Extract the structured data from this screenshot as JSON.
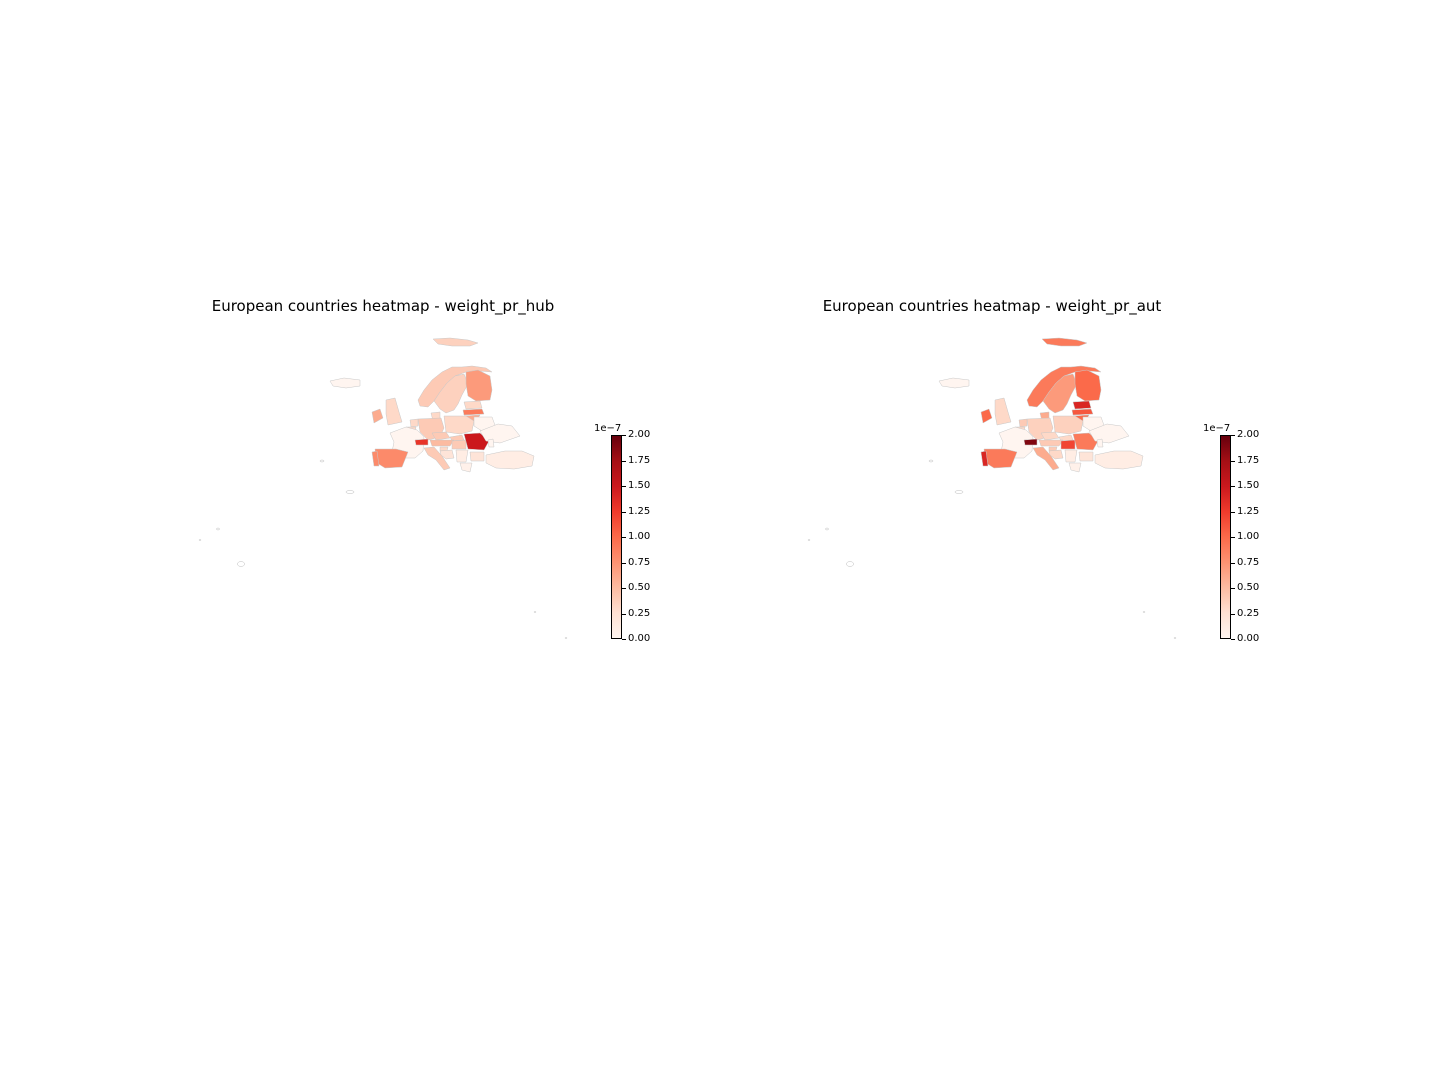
{
  "figure": {
    "maps": [
      {
        "title": "European countries heatmap - weight_pr_hub",
        "colorbar": {
          "exponent": "1e−7",
          "ticks": [
            "0.00",
            "0.25",
            "0.50",
            "0.75",
            "1.00",
            "1.25",
            "1.50",
            "1.75",
            "2.00"
          ]
        }
      },
      {
        "title": "European countries heatmap - weight_pr_aut",
        "colorbar": {
          "exponent": "1e−7",
          "ticks": [
            "0.00",
            "0.25",
            "0.50",
            "0.75",
            "1.00",
            "1.25",
            "1.50",
            "1.75",
            "2.00"
          ]
        }
      }
    ]
  },
  "map_data": {
    "colormap": "Reds",
    "scale_multiplier": 1e-07,
    "vmin": 0.0,
    "vmax": 2.0,
    "maps": [
      {
        "variable": "weight_pr_hub",
        "values": {
          "Iceland": 0.0,
          "Ireland": 0.6,
          "United Kingdom": 0.3,
          "Norway": 0.4,
          "Sweden": 0.35,
          "Finland": 0.7,
          "Svalbard": 0.35,
          "Estonia": 0.3,
          "Latvia": 0.9,
          "Lithuania": 0.6,
          "Denmark": 0.3,
          "Netherlands": 0.3,
          "Belgium": 0.3,
          "France": 0.0,
          "Germany": 0.4,
          "Poland": 0.3,
          "Czechia": 0.4,
          "Slovakia": 0.4,
          "Austria": 0.5,
          "Switzerland": 1.3,
          "Hungary": 0.4,
          "Romania": 1.5,
          "Spain": 0.8,
          "Portugal": 0.8,
          "Italy": 0.4,
          "Croatia": 0.2,
          "Slovenia": 0.3,
          "Serbia": 0.1,
          "Bulgaria": 0.2,
          "Greece": 0.05,
          "Turkey": 0.1,
          "Belarus": 0.0,
          "Ukraine": 0.0,
          "Moldova": 0.0
        }
      },
      {
        "variable": "weight_pr_aut",
        "values": {
          "Iceland": 0.0,
          "Ireland": 1.0,
          "United Kingdom": 0.3,
          "Norway": 0.9,
          "Sweden": 0.7,
          "Finland": 1.0,
          "Svalbard": 0.9,
          "Estonia": 1.4,
          "Latvia": 1.1,
          "Lithuania": 1.0,
          "Denmark": 0.6,
          "Netherlands": 0.4,
          "Belgium": 0.3,
          "France": 0.0,
          "Germany": 0.35,
          "Poland": 0.35,
          "Czechia": 0.3,
          "Slovakia": 0.3,
          "Austria": 0.4,
          "Switzerland": 1.9,
          "Hungary": 1.2,
          "Romania": 0.9,
          "Spain": 0.9,
          "Portugal": 1.4,
          "Italy": 0.6,
          "Croatia": 0.3,
          "Slovenia": 0.4,
          "Serbia": 0.1,
          "Bulgaria": 0.2,
          "Greece": 0.05,
          "Turkey": 0.1,
          "Belarus": 0.0,
          "Ukraine": 0.0,
          "Moldova": 0.0
        }
      }
    ]
  }
}
